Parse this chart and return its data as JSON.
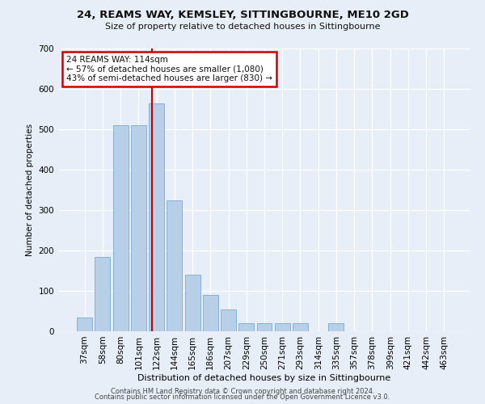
{
  "title1": "24, REAMS WAY, KEMSLEY, SITTINGBOURNE, ME10 2GD",
  "title2": "Size of property relative to detached houses in Sittingbourne",
  "xlabel": "Distribution of detached houses by size in Sittingbourne",
  "ylabel": "Number of detached properties",
  "categories": [
    "37sqm",
    "58sqm",
    "80sqm",
    "101sqm",
    "122sqm",
    "144sqm",
    "165sqm",
    "186sqm",
    "207sqm",
    "229sqm",
    "250sqm",
    "271sqm",
    "293sqm",
    "314sqm",
    "335sqm",
    "357sqm",
    "378sqm",
    "399sqm",
    "421sqm",
    "442sqm",
    "463sqm"
  ],
  "values": [
    35,
    185,
    510,
    510,
    565,
    325,
    140,
    90,
    55,
    20,
    20,
    20,
    20,
    0,
    20,
    0,
    0,
    0,
    0,
    0,
    0
  ],
  "bar_color": "#b8cfe8",
  "bar_edge_color": "#7aaad0",
  "vline_x": 3.75,
  "annotation_text": "24 REAMS WAY: 114sqm\n← 57% of detached houses are smaller (1,080)\n43% of semi-detached houses are larger (830) →",
  "annotation_box_color": "#ffffff",
  "annotation_box_edge_color": "#cc0000",
  "vline_color": "#cc0000",
  "footer1": "Contains HM Land Registry data © Crown copyright and database right 2024.",
  "footer2": "Contains public sector information licensed under the Open Government Licence v3.0.",
  "bg_color": "#e8eef8",
  "plot_bg_color": "#e8eef8",
  "grid_color": "#ffffff",
  "ylim": [
    0,
    700
  ],
  "yticks": [
    0,
    100,
    200,
    300,
    400,
    500,
    600,
    700
  ]
}
